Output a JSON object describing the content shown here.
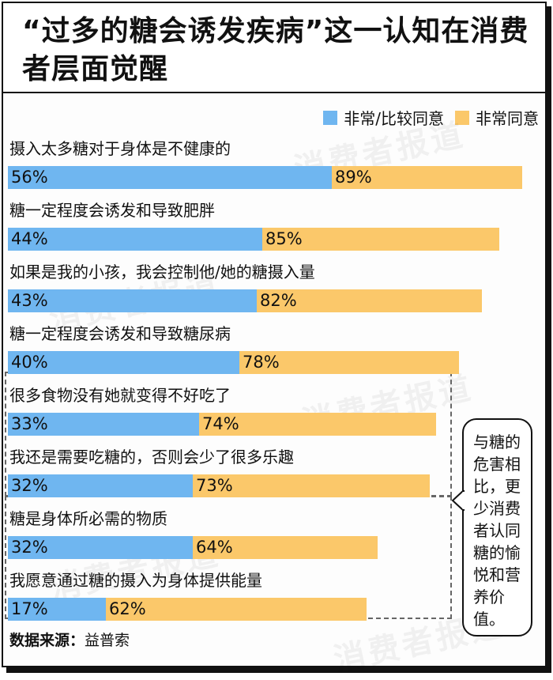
{
  "title": "“过多的糖会诱发疾病”这一认知在消费者层面觉醒",
  "legend": [
    {
      "label": "非常/比较同意",
      "color": "#6fb6f0"
    },
    {
      "label": "非常同意",
      "color": "#fbc86a"
    }
  ],
  "watermark": "消费者报道",
  "callout": "与糖的危害相比，更少消费者认同糖的愉悦和营养价值。",
  "source": {
    "label": "数据来源：",
    "value": "益普索"
  },
  "chart_data": {
    "type": "bar",
    "orientation": "horizontal",
    "categories": [
      "摄入太多糖对于身体是不健康的",
      "糖一定程度会诱发和导致肥胖",
      "如果是我的小孩，我会控制他/她的糖摄入量",
      "糖一定程度会诱发和导致糖尿病",
      "很多食物没有她就变得不好吃了",
      "我还是需要吃糖的，否则会少了很多乐趣",
      "糖是身体所必需的物质",
      "我愿意通过糖的摄入为身体提供能量"
    ],
    "series": [
      {
        "name": "非常/比较同意",
        "values": [
          89,
          85,
          82,
          78,
          74,
          73,
          64,
          62
        ],
        "labels": [
          "89%",
          "85%",
          "82%",
          "78%",
          "74%",
          "73%",
          "64%",
          "62%"
        ]
      },
      {
        "name": "非常同意",
        "values": [
          56,
          44,
          43,
          40,
          33,
          32,
          32,
          17
        ],
        "labels": [
          "56%",
          "44%",
          "43%",
          "40%",
          "33%",
          "32%",
          "32%",
          "17%"
        ]
      }
    ],
    "xlim": [
      0,
      100
    ]
  }
}
